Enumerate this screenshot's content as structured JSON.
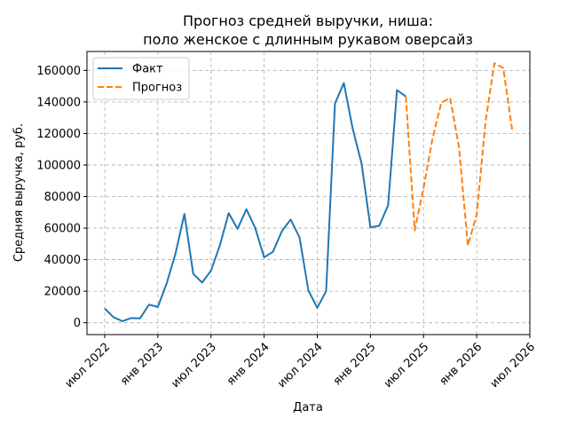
{
  "chart_data": {
    "type": "line",
    "title_lines": [
      "Прогноз средней выручки, ниша:",
      "поло женское с длинным рукавом оверсайз"
    ],
    "xlabel": "Дата",
    "ylabel": "Средняя выручка, руб.",
    "x_ticks": [
      "2022-07",
      "2023-01",
      "2023-07",
      "2024-01",
      "2024-07",
      "2025-01",
      "2025-07",
      "2026-01",
      "2026-07"
    ],
    "x_tick_labels": [
      "июл 2022",
      "янв 2023",
      "июл 2023",
      "янв 2024",
      "июл 2024",
      "янв 2025",
      "июл 2025",
      "янв 2026",
      "июл 2026"
    ],
    "y_ticks": [
      0,
      20000,
      40000,
      60000,
      80000,
      100000,
      120000,
      140000,
      160000
    ],
    "y_tick_labels": [
      "0",
      "20000",
      "40000",
      "60000",
      "80000",
      "100000",
      "120000",
      "140000",
      "160000"
    ],
    "x_range": [
      "2022-05",
      "2026-07"
    ],
    "ylim": [
      -7500,
      172000
    ],
    "grid": true,
    "legend_position": "top-left",
    "series": [
      {
        "name": "Факт",
        "style": "solid",
        "color": "#1f77b4",
        "x": [
          "2022-07",
          "2022-08",
          "2022-09",
          "2022-10",
          "2022-11",
          "2022-12",
          "2023-01",
          "2023-02",
          "2023-03",
          "2023-04",
          "2023-05",
          "2023-06",
          "2023-07",
          "2023-08",
          "2023-09",
          "2023-10",
          "2023-11",
          "2023-12",
          "2024-01",
          "2024-02",
          "2024-03",
          "2024-04",
          "2024-05",
          "2024-06",
          "2024-07",
          "2024-08",
          "2024-09",
          "2024-10",
          "2024-11",
          "2024-12",
          "2025-01",
          "2025-02",
          "2025-03",
          "2025-04",
          "2025-05"
        ],
        "values": [
          9000,
          3500,
          1000,
          3000,
          2800,
          11500,
          10000,
          25000,
          44000,
          69000,
          31000,
          25500,
          33000,
          49000,
          69500,
          59500,
          72000,
          60000,
          41500,
          45000,
          58000,
          65500,
          54000,
          20500,
          9500,
          20000,
          139000,
          152000,
          123000,
          101000,
          60500,
          61500,
          74500,
          147500,
          143500
        ]
      },
      {
        "name": "Прогноз",
        "style": "dashed",
        "color": "#ff7f0e",
        "x": [
          "2025-05",
          "2025-06",
          "2025-07",
          "2025-08",
          "2025-09",
          "2025-10",
          "2025-11",
          "2025-12",
          "2026-01",
          "2026-02",
          "2026-03",
          "2026-04",
          "2026-05"
        ],
        "values": [
          143500,
          58500,
          85500,
          116500,
          139500,
          142500,
          111500,
          49000,
          68500,
          127500,
          164500,
          161500,
          122500
        ]
      }
    ]
  }
}
